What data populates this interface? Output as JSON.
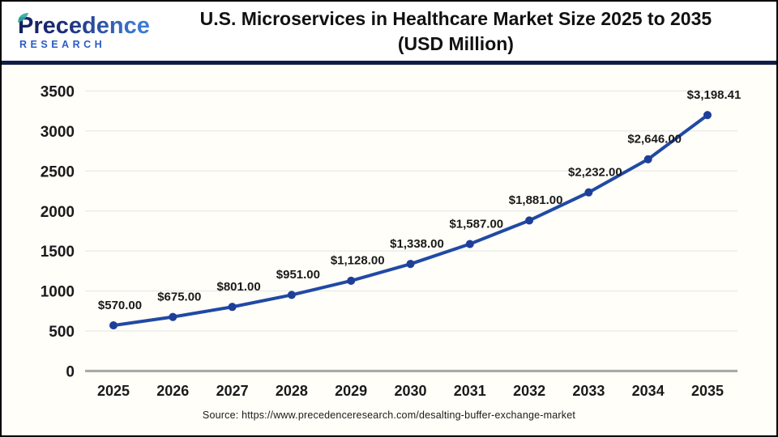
{
  "header": {
    "brand": "Precedence",
    "brand_sub": "RESEARCH",
    "title_line1": "U.S. Microservices in Healthcare Market Size 2025 to 2035",
    "title_line2": "(USD Million)"
  },
  "footer": {
    "source": "Source: https://www.precedenceresearch.com/desalting-buffer-exchange-market"
  },
  "colors": {
    "line": "#2149a5",
    "point": "#1d3f9a",
    "gridline": "#ececec",
    "axis": "#a9a9a9",
    "divider": "#101d49",
    "text": "#1a1a1a",
    "chart_background": "#fffef8"
  },
  "chart_data": {
    "type": "line",
    "title": "U.S. Microservices in Healthcare Market Size 2025 to 2035 (USD Million)",
    "categories": [
      "2025",
      "2026",
      "2027",
      "2028",
      "2029",
      "2030",
      "2031",
      "2032",
      "2033",
      "2034",
      "2035"
    ],
    "values": [
      570,
      675,
      801,
      951,
      1128,
      1338,
      1587,
      1881,
      2232,
      2646,
      3198.41
    ],
    "point_labels": [
      "$570.00",
      "$675.00",
      "$801.00",
      "$951.00",
      "$1,128.00",
      "$1,338.00",
      "$1,587.00",
      "$1,881.00",
      "$2,232.00",
      "$2,646.00",
      "$3,198.41"
    ],
    "xlabel": "",
    "ylabel": "",
    "ylim": [
      0,
      3500
    ],
    "ytick_step": 500,
    "grid": true,
    "legend": false
  }
}
